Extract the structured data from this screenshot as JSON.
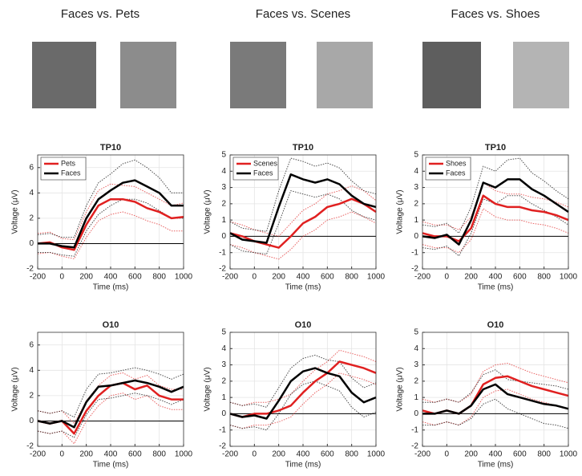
{
  "headers": [
    "Faces vs. Pets",
    "Faces vs. Scenes",
    "Faces vs. Shoes"
  ],
  "chart_data": [
    {
      "type": "line",
      "title": "TP10",
      "xlabel": "Time (ms)",
      "ylabel": "Voltage (μV)",
      "legend": "upper left",
      "grid": true,
      "x": [
        -200,
        -100,
        0,
        100,
        200,
        300,
        400,
        500,
        600,
        700,
        800,
        900,
        1000
      ],
      "xlim": [
        -200,
        1000
      ],
      "xticks": [
        -200,
        0,
        200,
        400,
        600,
        800,
        1000
      ],
      "ylim": [
        -2,
        7
      ],
      "yticks": [
        -2,
        0,
        2,
        4,
        6
      ],
      "series": [
        {
          "name": "Pets",
          "color": "#e02020",
          "values": [
            0,
            0.1,
            -0.3,
            -0.5,
            1.5,
            3,
            3.5,
            3.5,
            3.3,
            2.8,
            2.5,
            2,
            2.1
          ],
          "lower": [
            -0.8,
            -0.7,
            -1,
            -1.2,
            0.5,
            1.8,
            2.3,
            2.5,
            2.2,
            1.8,
            1.5,
            1,
            1
          ],
          "upper": [
            0.8,
            0.9,
            0.4,
            0.3,
            2.5,
            4.2,
            4.7,
            4.6,
            4.5,
            4,
            3.5,
            3,
            3.2
          ]
        },
        {
          "name": "Faces",
          "color": "#000000",
          "values": [
            0,
            0,
            -0.2,
            -0.3,
            2,
            3.5,
            4.2,
            4.8,
            5,
            4.5,
            4,
            3,
            3
          ],
          "lower": [
            -0.7,
            -0.7,
            -0.9,
            -1,
            1,
            2.3,
            3,
            3.5,
            3.5,
            3.2,
            2.6,
            2,
            2
          ],
          "upper": [
            0.7,
            0.8,
            0.5,
            0.5,
            3,
            4.8,
            5.5,
            6.3,
            6.6,
            6,
            5.2,
            4,
            4
          ]
        }
      ]
    },
    {
      "type": "line",
      "title": "TP10",
      "xlabel": "Time (ms)",
      "ylabel": "Voltage (μV)",
      "legend": "upper left",
      "grid": true,
      "x": [
        -200,
        -100,
        0,
        100,
        200,
        300,
        400,
        500,
        600,
        700,
        800,
        900,
        1000
      ],
      "xlim": [
        -200,
        1000
      ],
      "xticks": [
        -200,
        0,
        200,
        400,
        600,
        800,
        1000
      ],
      "ylim": [
        -2,
        5
      ],
      "yticks": [
        -2,
        -1,
        0,
        1,
        2,
        3,
        4,
        5
      ],
      "series": [
        {
          "name": "Scenes",
          "color": "#e02020",
          "values": [
            0.2,
            0,
            -0.3,
            -0.5,
            -0.7,
            0,
            0.8,
            1.2,
            1.8,
            2,
            2.3,
            2,
            1.5
          ],
          "lower": [
            -0.5,
            -0.7,
            -1,
            -1.2,
            -1.4,
            -0.8,
            0,
            0.4,
            1,
            1.2,
            1.5,
            1.2,
            0.8
          ],
          "upper": [
            0.9,
            0.7,
            0.4,
            0.2,
            0,
            0.8,
            1.6,
            2,
            2.6,
            2.8,
            3.1,
            2.8,
            2.2
          ]
        },
        {
          "name": "Faces",
          "color": "#000000",
          "values": [
            0.2,
            -0.2,
            -0.3,
            -0.4,
            1.8,
            3.8,
            3.5,
            3.3,
            3.5,
            3.2,
            2.5,
            2,
            1.8
          ],
          "lower": [
            -0.5,
            -0.9,
            -1,
            -1.1,
            0.8,
            2.8,
            2.6,
            2.4,
            2.6,
            2.3,
            1.6,
            1.2,
            1
          ],
          "upper": [
            0.9,
            0.5,
            0.4,
            0.3,
            2.8,
            4.8,
            4.6,
            4.3,
            4.5,
            4.2,
            3.4,
            2.8,
            2.6
          ]
        }
      ]
    },
    {
      "type": "line",
      "title": "TP10",
      "xlabel": "Time (ms)",
      "ylabel": "Voltage (μV)",
      "legend": "upper left",
      "grid": true,
      "x": [
        -200,
        -100,
        0,
        100,
        200,
        300,
        400,
        500,
        600,
        700,
        800,
        900,
        1000
      ],
      "xlim": [
        -200,
        1000
      ],
      "xticks": [
        -200,
        0,
        200,
        400,
        600,
        800,
        1000
      ],
      "ylim": [
        -2,
        5
      ],
      "yticks": [
        -2,
        -1,
        0,
        1,
        2,
        3,
        4,
        5
      ],
      "series": [
        {
          "name": "Shoes",
          "color": "#e02020",
          "values": [
            0.2,
            0,
            0,
            -0.3,
            0.5,
            2.5,
            2,
            1.8,
            1.8,
            1.6,
            1.5,
            1.3,
            1
          ],
          "lower": [
            -0.5,
            -0.7,
            -0.7,
            -1,
            -0.2,
            1.7,
            1.2,
            1,
            1,
            0.8,
            0.7,
            0.5,
            0.2
          ],
          "upper": [
            0.9,
            0.7,
            0.7,
            0.4,
            1.2,
            3.3,
            2.8,
            2.6,
            2.6,
            2.4,
            2.3,
            2.1,
            1.8
          ]
        },
        {
          "name": "Faces",
          "color": "#000000",
          "values": [
            0,
            -0.1,
            0.1,
            -0.5,
            1,
            3.3,
            3,
            3.5,
            3.5,
            2.9,
            2.5,
            2,
            1.5
          ],
          "lower": [
            -0.7,
            -0.8,
            -0.6,
            -1.2,
            0.2,
            2.3,
            2,
            2.5,
            2.5,
            2,
            1.6,
            1.2,
            0.7
          ],
          "upper": [
            0.7,
            0.6,
            0.8,
            0.2,
            1.8,
            4.3,
            4,
            4.7,
            4.8,
            3.9,
            3.4,
            2.8,
            2.3
          ]
        }
      ]
    },
    {
      "type": "line",
      "title": "O10",
      "xlabel": "Time (ms)",
      "ylabel": "Voltage (μV)",
      "grid": true,
      "x": [
        -200,
        -100,
        0,
        100,
        200,
        300,
        400,
        500,
        600,
        700,
        800,
        900,
        1000
      ],
      "xlim": [
        -200,
        1000
      ],
      "xticks": [
        -200,
        0,
        200,
        400,
        600,
        800,
        1000
      ],
      "ylim": [
        -2,
        7
      ],
      "yticks": [
        -2,
        0,
        2,
        4,
        6
      ],
      "series": [
        {
          "name": "Pets",
          "color": "#e02020",
          "values": [
            0,
            -0.2,
            0,
            -1,
            0.8,
            2,
            2.8,
            3,
            2.5,
            2.8,
            2,
            1.7,
            1.7
          ],
          "lower": [
            -0.8,
            -1,
            -0.8,
            -1.8,
            0,
            1.2,
            2,
            2.2,
            1.7,
            2,
            1.2,
            0.9,
            0.9
          ],
          "upper": [
            0.8,
            0.6,
            0.8,
            -0.2,
            1.6,
            2.8,
            3.6,
            3.8,
            3.3,
            3.6,
            2.8,
            2.5,
            2.5
          ]
        },
        {
          "name": "Faces",
          "color": "#000000",
          "values": [
            0,
            -0.2,
            0,
            -0.5,
            1.5,
            2.7,
            2.8,
            3,
            3.2,
            3,
            2.7,
            2.3,
            2.7
          ],
          "lower": [
            -0.8,
            -1,
            -0.8,
            -1.3,
            0.5,
            1.7,
            1.8,
            2,
            2.2,
            2,
            1.7,
            1.3,
            1.7
          ],
          "upper": [
            0.8,
            0.6,
            0.8,
            0.3,
            2.5,
            3.7,
            3.8,
            4,
            4.2,
            4,
            3.7,
            3.3,
            3.7
          ]
        }
      ]
    },
    {
      "type": "line",
      "title": "O10",
      "xlabel": "Time (ms)",
      "ylabel": "Voltage (μV)",
      "grid": true,
      "x": [
        -200,
        -100,
        0,
        100,
        200,
        300,
        400,
        500,
        600,
        700,
        800,
        900,
        1000
      ],
      "xlim": [
        -200,
        1000
      ],
      "xticks": [
        -200,
        0,
        200,
        400,
        600,
        800,
        1000
      ],
      "ylim": [
        -2,
        5
      ],
      "yticks": [
        -2,
        -1,
        0,
        1,
        2,
        3,
        4,
        5
      ],
      "series": [
        {
          "name": "Scenes",
          "color": "#e02020",
          "values": [
            0,
            -0.2,
            0,
            0,
            0.2,
            0.5,
            1.3,
            2,
            2.5,
            3.2,
            3,
            2.8,
            2.5
          ],
          "lower": [
            -0.7,
            -0.9,
            -0.7,
            -0.7,
            -0.5,
            -0.2,
            0.6,
            1.3,
            1.8,
            2.5,
            2.3,
            2.1,
            1.8
          ],
          "upper": [
            0.7,
            0.5,
            0.7,
            0.7,
            0.9,
            1.2,
            2,
            2.7,
            3.2,
            3.9,
            3.7,
            3.5,
            3.2
          ]
        },
        {
          "name": "Faces",
          "color": "#000000",
          "values": [
            0,
            -0.2,
            -0.1,
            -0.3,
            0.8,
            2,
            2.6,
            2.8,
            2.5,
            2.3,
            1.3,
            0.7,
            1
          ],
          "lower": [
            -0.7,
            -0.9,
            -0.8,
            -1,
            0,
            1.2,
            1.8,
            2,
            1.7,
            1.4,
            0.4,
            -0.2,
            0.1
          ],
          "upper": [
            0.7,
            0.5,
            0.6,
            0.4,
            1.6,
            2.8,
            3.4,
            3.6,
            3.3,
            3.2,
            2.2,
            1.6,
            1.9
          ]
        }
      ]
    },
    {
      "type": "line",
      "title": "O10",
      "xlabel": "Time (ms)",
      "ylabel": "Voltage (μV)",
      "grid": true,
      "x": [
        -200,
        -100,
        0,
        100,
        200,
        300,
        400,
        500,
        600,
        700,
        800,
        900,
        1000
      ],
      "xlim": [
        -200,
        1000
      ],
      "xticks": [
        -200,
        0,
        200,
        400,
        600,
        800,
        1000
      ],
      "ylim": [
        -2,
        5
      ],
      "yticks": [
        -2,
        -1,
        0,
        1,
        2,
        3,
        4,
        5
      ],
      "series": [
        {
          "name": "Shoes",
          "color": "#e02020",
          "values": [
            0.2,
            0,
            0.2,
            0,
            0.5,
            1.8,
            2.2,
            2.3,
            2,
            1.7,
            1.5,
            1.3,
            1.1
          ],
          "lower": [
            -0.5,
            -0.7,
            -0.5,
            -0.7,
            -0.2,
            1,
            1.4,
            1.5,
            1.2,
            0.9,
            0.7,
            0.5,
            0.3
          ],
          "upper": [
            0.9,
            0.7,
            0.9,
            0.7,
            1.2,
            2.6,
            3,
            3.1,
            2.8,
            2.5,
            2.3,
            2.1,
            1.9
          ]
        },
        {
          "name": "Faces",
          "color": "#000000",
          "values": [
            0,
            0,
            0.2,
            0,
            0.5,
            1.5,
            1.8,
            1.2,
            1,
            0.8,
            0.6,
            0.5,
            0.3
          ],
          "lower": [
            -0.7,
            -0.7,
            -0.5,
            -0.7,
            -0.3,
            0.6,
            0.9,
            0.3,
            0,
            -0.3,
            -0.6,
            -0.7,
            -0.9
          ],
          "upper": [
            0.7,
            0.7,
            0.9,
            0.7,
            1.3,
            2.4,
            2.7,
            2.1,
            2,
            1.9,
            1.8,
            1.7,
            1.5
          ]
        }
      ]
    }
  ]
}
